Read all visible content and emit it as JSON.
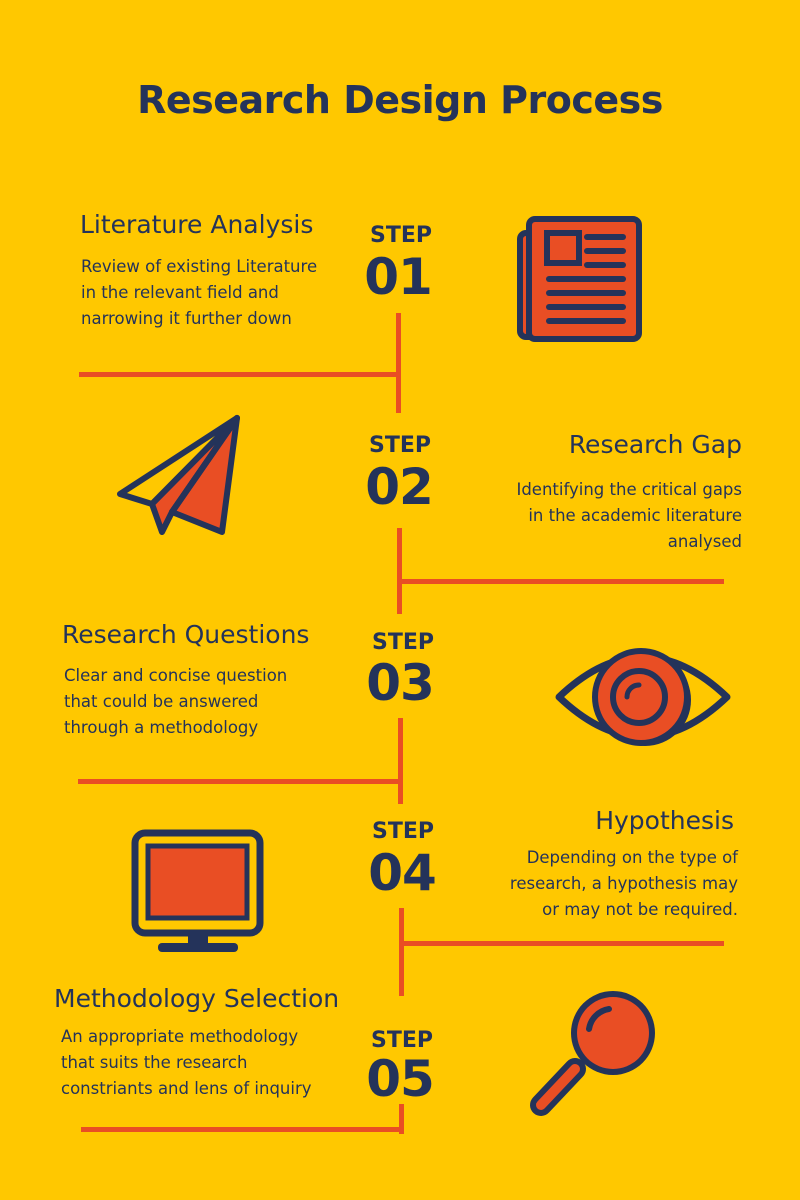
{
  "title": "Research Design Process",
  "colors": {
    "background": "#FFC800",
    "navy": "#24335A",
    "accent": "#E94E24"
  },
  "steps": [
    {
      "label": "STEP",
      "number": "01",
      "heading": "Literature Analysis",
      "description": [
        "Review of existing Literature",
        "in the relevant field and",
        "narrowing it further down"
      ],
      "icon": "newspaper-icon"
    },
    {
      "label": "STEP",
      "number": "02",
      "heading": "Research Gap",
      "description": [
        "Identifying the critical gaps",
        "in the academic literature",
        "analysed"
      ],
      "icon": "paper-plane-icon"
    },
    {
      "label": "STEP",
      "number": "03",
      "heading": "Research Questions",
      "description": [
        "Clear and concise question",
        "that could be answered",
        "through a methodology"
      ],
      "icon": "eye-icon"
    },
    {
      "label": "STEP",
      "number": "04",
      "heading": "Hypothesis",
      "description": [
        "Depending on the type of",
        "research, a hypothesis may",
        "or may not be required."
      ],
      "icon": "monitor-icon"
    },
    {
      "label": "STEP",
      "number": "05",
      "heading": "Methodology Selection",
      "description": [
        "An appropriate methodology",
        "that suits the research",
        "constriants and lens of inquiry"
      ],
      "icon": "magnifying-glass-icon"
    }
  ]
}
